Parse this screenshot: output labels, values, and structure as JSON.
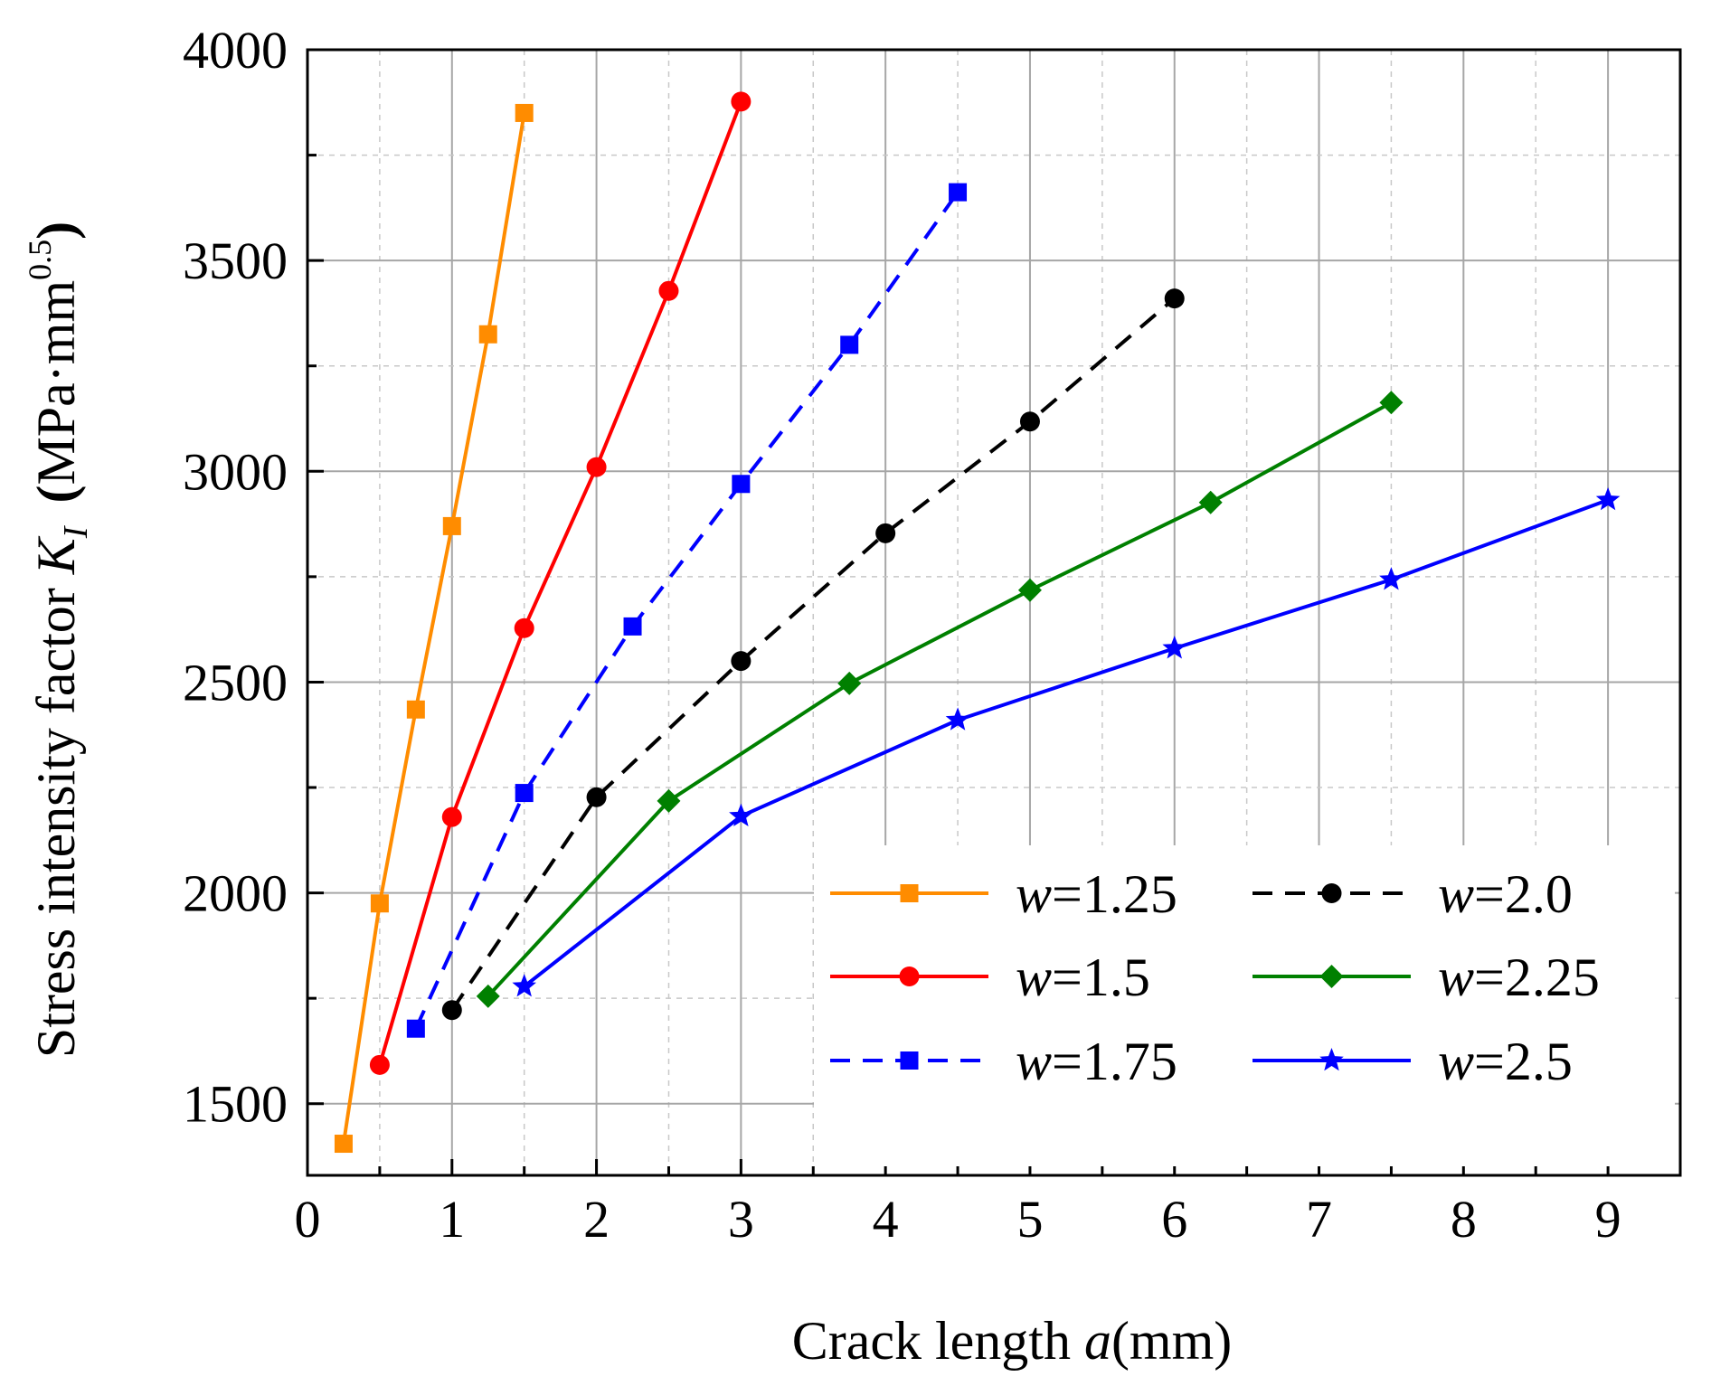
{
  "chart_data": {
    "type": "line",
    "title": "",
    "xlabel": {
      "prefix": "Crack length ",
      "var": "a",
      "suffix": "(mm)"
    },
    "ylabel": {
      "prefix": "Stress intensity factor ",
      "var": "K",
      "sub": "I",
      "unit_open": "(",
      "unit": "MPa·mm",
      "sup": "0.5",
      "unit_close": ")"
    },
    "xlim": [
      0,
      9.5
    ],
    "ylim": [
      1330,
      4000
    ],
    "x_ticks": [
      0,
      1,
      2,
      3,
      4,
      5,
      6,
      7,
      8,
      9
    ],
    "x_tick_labels": [
      "0",
      "1",
      "2",
      "3",
      "4",
      "5",
      "6",
      "7",
      "8",
      "9"
    ],
    "y_ticks": [
      1500,
      2000,
      2500,
      3000,
      3500,
      4000
    ],
    "y_tick_labels": [
      "1500",
      "2000",
      "2500",
      "3000",
      "3500",
      "4000"
    ],
    "grid": "major solid, minor dashed",
    "legend_position": "bottom-right",
    "series": [
      {
        "name": "w=1.25",
        "var": "w",
        "value_text": "=1.25",
        "color": "#ff8c00",
        "marker": "square",
        "dash": "solid",
        "x": [
          0.25,
          0.5,
          0.75,
          1.0,
          1.25,
          1.5
        ],
        "y": [
          1405,
          1975,
          2435,
          2870,
          3325,
          3850
        ]
      },
      {
        "name": "w=1.5",
        "var": "w",
        "value_text": "=1.5",
        "color": "#ff0000",
        "marker": "circle",
        "dash": "solid",
        "x": [
          0.5,
          1.0,
          1.5,
          2.0,
          2.5,
          3.0
        ],
        "y": [
          1592,
          2180,
          2628,
          3010,
          3428,
          3877
        ]
      },
      {
        "name": "w=1.75",
        "var": "w",
        "value_text": "=1.75",
        "color": "#0000ff",
        "marker": "square",
        "dash": "dashed",
        "x": [
          0.75,
          1.5,
          2.25,
          3.0,
          3.75,
          4.5
        ],
        "y": [
          1678,
          2237,
          2632,
          2970,
          3300,
          3662
        ]
      },
      {
        "name": "w=2.0",
        "var": "w",
        "value_text": "=2.0",
        "color": "#000000",
        "marker": "circle",
        "dash": "dashed",
        "x": [
          1.0,
          2.0,
          3.0,
          4.0,
          5.0,
          6.0
        ],
        "y": [
          1722,
          2227,
          2550,
          2853,
          3118,
          3410
        ]
      },
      {
        "name": "w=2.25",
        "var": "w",
        "value_text": "=2.25",
        "color": "#008000",
        "marker": "diamond",
        "dash": "solid",
        "x": [
          1.25,
          2.5,
          3.75,
          5.0,
          6.25,
          7.5
        ],
        "y": [
          1755,
          2218,
          2497,
          2718,
          2926,
          3163
        ]
      },
      {
        "name": "w=2.5",
        "var": "w",
        "value_text": "=2.5",
        "color": "#0000ff",
        "marker": "star",
        "dash": "solid",
        "x": [
          1.5,
          3.0,
          4.5,
          6.0,
          7.5,
          9.0
        ],
        "y": [
          1778,
          2182,
          2410,
          2580,
          2743,
          2932
        ]
      }
    ]
  }
}
